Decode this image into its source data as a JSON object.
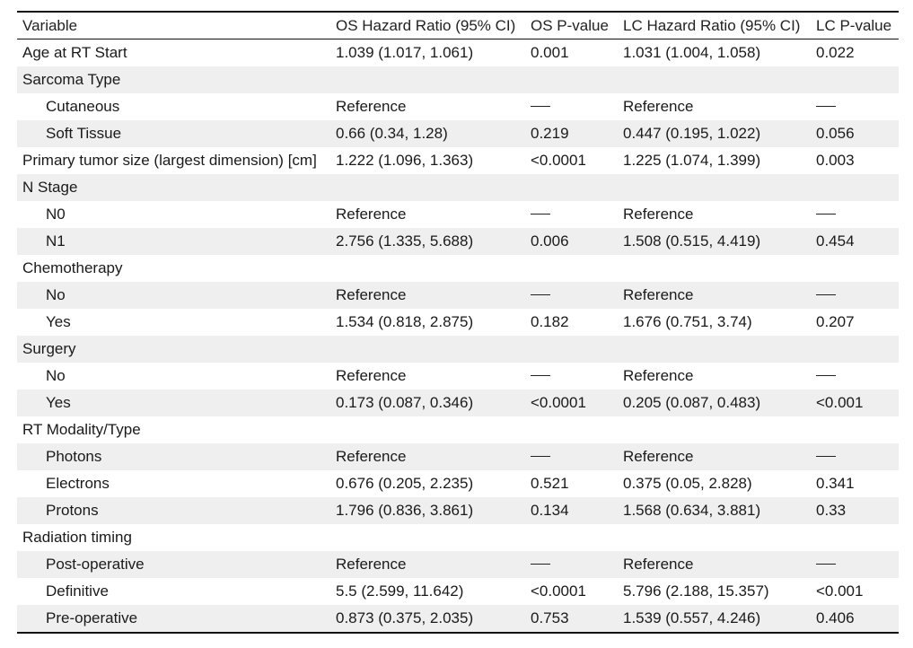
{
  "table": {
    "headers": {
      "variable": "Variable",
      "os_hr": "OS Hazard Ratio (95% CI)",
      "os_p": "OS P-value",
      "lc_hr": "LC Hazard Ratio (95% CI)",
      "lc_p": "LC P-value"
    },
    "rows": [
      {
        "variable": "Age at RT Start",
        "indent": false,
        "os_hr": "1.039 (1.017, 1.061)",
        "os_p": "0.001",
        "lc_hr": "1.031 (1.004, 1.058)",
        "lc_p": "0.022"
      },
      {
        "variable": "Sarcoma Type",
        "indent": false,
        "os_hr": "",
        "os_p": "",
        "lc_hr": "",
        "lc_p": ""
      },
      {
        "variable": "Cutaneous",
        "indent": true,
        "os_hr": "Reference",
        "os_p": "—",
        "lc_hr": "Reference",
        "lc_p": "—"
      },
      {
        "variable": "Soft Tissue",
        "indent": true,
        "os_hr": "0.66 (0.34, 1.28)",
        "os_p": "0.219",
        "lc_hr": "0.447 (0.195, 1.022)",
        "lc_p": "0.056"
      },
      {
        "variable": "Primary tumor size (largest dimension) [cm]",
        "indent": false,
        "os_hr": "1.222 (1.096, 1.363)",
        "os_p": "<0.0001",
        "lc_hr": "1.225 (1.074, 1.399)",
        "lc_p": "0.003"
      },
      {
        "variable": "N Stage",
        "indent": false,
        "os_hr": "",
        "os_p": "",
        "lc_hr": "",
        "lc_p": ""
      },
      {
        "variable": "N0",
        "indent": true,
        "os_hr": "Reference",
        "os_p": "—",
        "lc_hr": "Reference",
        "lc_p": "—"
      },
      {
        "variable": "N1",
        "indent": true,
        "os_hr": "2.756 (1.335, 5.688)",
        "os_p": "0.006",
        "lc_hr": "1.508 (0.515, 4.419)",
        "lc_p": "0.454"
      },
      {
        "variable": "Chemotherapy",
        "indent": false,
        "os_hr": "",
        "os_p": "",
        "lc_hr": "",
        "lc_p": ""
      },
      {
        "variable": "No",
        "indent": true,
        "os_hr": "Reference",
        "os_p": "—",
        "lc_hr": "Reference",
        "lc_p": "—"
      },
      {
        "variable": "Yes",
        "indent": true,
        "os_hr": "1.534 (0.818, 2.875)",
        "os_p": "0.182",
        "lc_hr": "1.676 (0.751, 3.74)",
        "lc_p": "0.207"
      },
      {
        "variable": "Surgery",
        "indent": false,
        "os_hr": "",
        "os_p": "",
        "lc_hr": "",
        "lc_p": ""
      },
      {
        "variable": "No",
        "indent": true,
        "os_hr": "Reference",
        "os_p": "—",
        "lc_hr": "Reference",
        "lc_p": "—"
      },
      {
        "variable": "Yes",
        "indent": true,
        "os_hr": "0.173 (0.087, 0.346)",
        "os_p": "<0.0001",
        "lc_hr": "0.205 (0.087, 0.483)",
        "lc_p": "<0.001"
      },
      {
        "variable": "RT Modality/Type",
        "indent": false,
        "os_hr": "",
        "os_p": "",
        "lc_hr": "",
        "lc_p": ""
      },
      {
        "variable": "Photons",
        "indent": true,
        "os_hr": "Reference",
        "os_p": "—",
        "lc_hr": "Reference",
        "lc_p": "—"
      },
      {
        "variable": "Electrons",
        "indent": true,
        "os_hr": "0.676 (0.205, 2.235)",
        "os_p": "0.521",
        "lc_hr": "0.375 (0.05, 2.828)",
        "lc_p": "0.341"
      },
      {
        "variable": "Protons",
        "indent": true,
        "os_hr": "1.796 (0.836, 3.861)",
        "os_p": "0.134",
        "lc_hr": "1.568 (0.634, 3.881)",
        "lc_p": "0.33"
      },
      {
        "variable": "Radiation timing",
        "indent": false,
        "os_hr": "",
        "os_p": "",
        "lc_hr": "",
        "lc_p": ""
      },
      {
        "variable": "Post-operative",
        "indent": true,
        "os_hr": "Reference",
        "os_p": "—",
        "lc_hr": "Reference",
        "lc_p": "—"
      },
      {
        "variable": "Definitive",
        "indent": true,
        "os_hr": "5.5 (2.599, 11.642)",
        "os_p": "<0.0001",
        "lc_hr": "5.796 (2.188, 15.357)",
        "lc_p": "<0.001"
      },
      {
        "variable": "Pre-operative",
        "indent": true,
        "os_hr": "0.873 (0.375, 2.035)",
        "os_p": "0.753",
        "lc_hr": "1.539 (0.557, 4.246)",
        "lc_p": "0.406"
      }
    ]
  }
}
